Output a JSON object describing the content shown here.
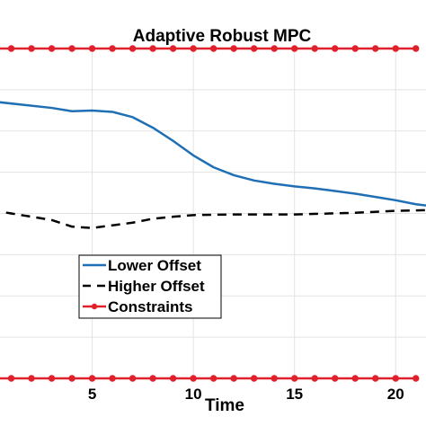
{
  "chart_data": {
    "type": "line",
    "title": "Adaptive Robust MPC",
    "xlabel": "Time",
    "ylabel": "",
    "xlim": [
      0,
      21.5
    ],
    "ylim": [
      0,
      10
    ],
    "xticks": [
      5,
      10,
      15,
      20
    ],
    "xtick_labels": [
      "5",
      "10",
      "15",
      "20"
    ],
    "grid": true,
    "legend_position": "lower-left",
    "series": [
      {
        "name": "Lower Offset",
        "color": "#1f6fb5",
        "style": "solid",
        "x": [
          0,
          3,
          4,
          5,
          6,
          7,
          8,
          9,
          10,
          11,
          12,
          13,
          14,
          15,
          16,
          17,
          18,
          19,
          20,
          21,
          21.5
        ],
        "y": [
          8.4,
          8.2,
          8.1,
          8.12,
          8.08,
          7.92,
          7.6,
          7.2,
          6.76,
          6.4,
          6.16,
          6.0,
          5.9,
          5.82,
          5.76,
          5.68,
          5.6,
          5.5,
          5.4,
          5.28,
          5.24
        ]
      },
      {
        "name": "Higher Offset",
        "color": "#000000",
        "style": "dashed",
        "x": [
          0,
          1,
          3,
          4,
          5,
          6,
          7,
          8,
          9,
          10,
          12,
          15,
          18,
          20,
          21.5
        ],
        "y": [
          5.1,
          5.0,
          4.8,
          4.6,
          4.56,
          4.64,
          4.72,
          4.84,
          4.9,
          4.95,
          4.97,
          4.97,
          5.02,
          5.08,
          5.1
        ]
      },
      {
        "name": "Constraints",
        "color": "#e0202a",
        "style": "line-with-markers",
        "x": [
          0,
          1,
          2,
          3,
          4,
          5,
          6,
          7,
          8,
          9,
          10,
          11,
          12,
          13,
          14,
          15,
          16,
          17,
          18,
          19,
          20,
          21
        ],
        "y_upper": 10,
        "y_lower": 0
      }
    ]
  }
}
